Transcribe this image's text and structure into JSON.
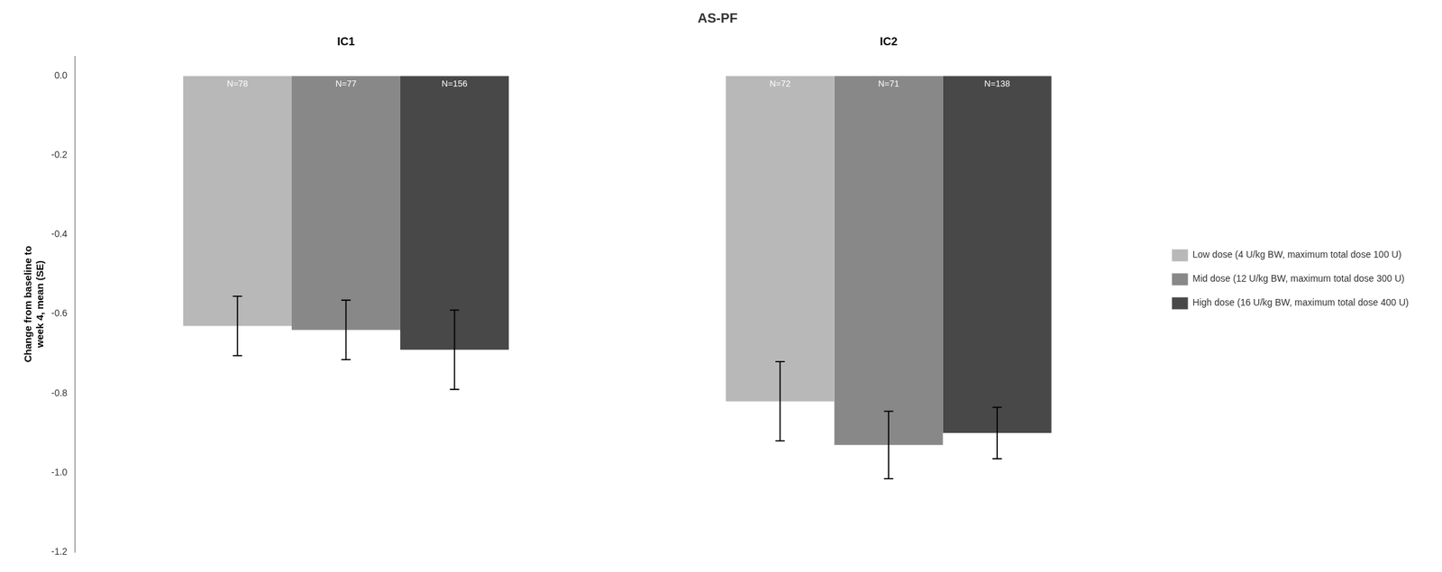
{
  "chart_data": {
    "type": "bar",
    "title": "AS-PF",
    "ylabel": "Change from baseline to\nweek 4, mean (SE)",
    "categories": [
      "IC1",
      "IC2"
    ],
    "series": [
      {
        "name": "Low dose (4 U/kg BW, maximum total dose 100 U)",
        "color": "#b8b8b8",
        "values": [
          -0.63,
          -0.82
        ],
        "errors": [
          0.075,
          0.1
        ],
        "n_labels": [
          "N=78",
          "N=72"
        ]
      },
      {
        "name": "Mid dose (12 U/kg BW, maximum total dose 300 U)",
        "color": "#888888",
        "values": [
          -0.64,
          -0.93
        ],
        "errors": [
          0.075,
          0.085
        ],
        "n_labels": [
          "N=77",
          "N=71"
        ]
      },
      {
        "name": "High dose (16 U/kg BW, maximum total dose 400 U)",
        "color": "#484848",
        "values": [
          -0.69,
          -0.9
        ],
        "errors": [
          0.1,
          0.065
        ],
        "n_labels": [
          "N=156",
          "N=138"
        ]
      }
    ],
    "ylim": [
      -1.2,
      0.05
    ],
    "yticks": [
      {
        "value": 0.0,
        "label": "0.0"
      },
      -0.2,
      -0.4,
      -0.6,
      -0.8,
      {
        "value": -1.0,
        "label": "-1.0"
      },
      -1.2
    ],
    "grid": false,
    "legend": "right"
  }
}
